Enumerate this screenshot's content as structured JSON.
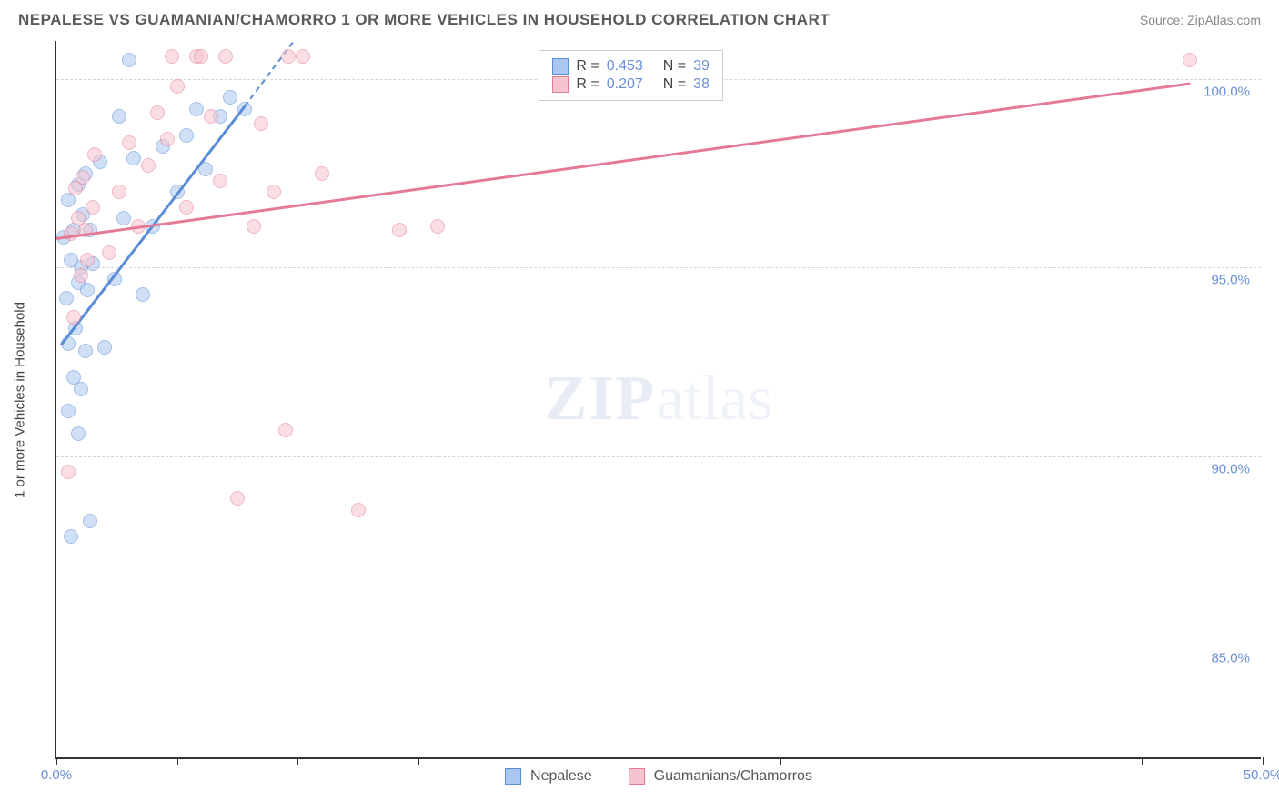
{
  "header": {
    "title": "NEPALESE VS GUAMANIAN/CHAMORRO 1 OR MORE VEHICLES IN HOUSEHOLD CORRELATION CHART",
    "source": "Source: ZipAtlas.com"
  },
  "watermark": {
    "prefix": "ZIP",
    "suffix": "atlas"
  },
  "chart": {
    "type": "scatter",
    "background_color": "#ffffff",
    "grid_color": "#d5d5d5",
    "axis_color": "#333333",
    "text_color": "#444444",
    "value_label_color": "#6a8fd6",
    "xlim": [
      0,
      50
    ],
    "ylim": [
      82,
      101
    ],
    "x_ticks": [
      0,
      5,
      10,
      15,
      20,
      25,
      30,
      35,
      40,
      45,
      50
    ],
    "x_tick_labels": {
      "0": "0.0%",
      "50": "50.0%"
    },
    "y_gridlines": [
      85,
      90,
      95,
      100
    ],
    "y_tick_labels": {
      "85": "85.0%",
      "90": "90.0%",
      "95": "95.0%",
      "100": "100.0%"
    },
    "y_axis_title": "1 or more Vehicles in Household",
    "marker_radius": 8,
    "marker_opacity": 0.55,
    "line_width": 2.5,
    "stats_box": {
      "rows": [
        {
          "swatch_fill": "#a9c7ef",
          "swatch_border": "#5a8dd6",
          "r_label": "R =",
          "r": "0.453",
          "n_label": "N =",
          "n": "39"
        },
        {
          "swatch_fill": "#f6c4cf",
          "swatch_border": "#e47a96",
          "r_label": "R =",
          "r": "0.207",
          "n_label": "N =",
          "n": "38"
        }
      ]
    },
    "legend": [
      {
        "swatch_fill": "#a9c7ef",
        "swatch_border": "#5a8dd6",
        "label": "Nepalese"
      },
      {
        "swatch_fill": "#f6c4cf",
        "swatch_border": "#e47a96",
        "label": "Guamanians/Chamorros"
      }
    ],
    "series": [
      {
        "name": "Nepalese",
        "fill": "#a9c7ef",
        "stroke": "#5a8dd6",
        "trend": {
          "solid": {
            "x1": 0.2,
            "y1": 93.0,
            "x2": 7.8,
            "y2": 99.3
          },
          "dash": {
            "x1": 7.8,
            "y1": 99.3,
            "x2": 9.8,
            "y2": 101.0
          }
        },
        "points": [
          [
            0.6,
            87.9
          ],
          [
            0.9,
            90.6
          ],
          [
            0.5,
            91.2
          ],
          [
            0.7,
            92.1
          ],
          [
            1.0,
            91.8
          ],
          [
            1.4,
            88.3
          ],
          [
            0.5,
            93.0
          ],
          [
            0.8,
            93.4
          ],
          [
            1.2,
            92.8
          ],
          [
            0.4,
            94.2
          ],
          [
            0.9,
            94.6
          ],
          [
            1.3,
            94.4
          ],
          [
            0.6,
            95.2
          ],
          [
            1.0,
            95.0
          ],
          [
            1.5,
            95.1
          ],
          [
            0.3,
            95.8
          ],
          [
            0.7,
            96.0
          ],
          [
            1.1,
            96.4
          ],
          [
            1.4,
            96.0
          ],
          [
            0.5,
            96.8
          ],
          [
            0.9,
            97.2
          ],
          [
            1.2,
            97.5
          ],
          [
            2.0,
            92.9
          ],
          [
            2.4,
            94.7
          ],
          [
            2.8,
            96.3
          ],
          [
            3.2,
            97.9
          ],
          [
            3.6,
            94.3
          ],
          [
            4.0,
            96.1
          ],
          [
            4.4,
            98.2
          ],
          [
            5.0,
            97.0
          ],
          [
            5.4,
            98.5
          ],
          [
            5.8,
            99.2
          ],
          [
            6.2,
            97.6
          ],
          [
            6.8,
            99.0
          ],
          [
            7.2,
            99.5
          ],
          [
            7.8,
            99.2
          ],
          [
            1.8,
            97.8
          ],
          [
            2.6,
            99.0
          ],
          [
            3.0,
            100.5
          ]
        ]
      },
      {
        "name": "Guamanians/Chamorros",
        "fill": "#f6c4cf",
        "stroke": "#e47a96",
        "trend": {
          "solid": {
            "x1": 0.0,
            "y1": 95.8,
            "x2": 47.0,
            "y2": 99.9
          }
        },
        "points": [
          [
            0.5,
            89.6
          ],
          [
            0.7,
            93.7
          ],
          [
            1.0,
            94.8
          ],
          [
            1.3,
            95.2
          ],
          [
            0.6,
            95.9
          ],
          [
            0.9,
            96.3
          ],
          [
            1.2,
            96.0
          ],
          [
            1.5,
            96.6
          ],
          [
            0.8,
            97.1
          ],
          [
            1.1,
            97.4
          ],
          [
            1.6,
            98.0
          ],
          [
            2.2,
            95.4
          ],
          [
            2.6,
            97.0
          ],
          [
            3.0,
            98.3
          ],
          [
            3.4,
            96.1
          ],
          [
            3.8,
            97.7
          ],
          [
            4.2,
            99.1
          ],
          [
            4.6,
            98.4
          ],
          [
            5.0,
            99.8
          ],
          [
            5.4,
            96.6
          ],
          [
            5.8,
            100.6
          ],
          [
            6.4,
            99.0
          ],
          [
            6.8,
            97.3
          ],
          [
            7.5,
            88.9
          ],
          [
            8.2,
            96.1
          ],
          [
            9.0,
            97.0
          ],
          [
            9.5,
            90.7
          ],
          [
            10.2,
            100.6
          ],
          [
            4.8,
            100.6
          ],
          [
            6.0,
            100.6
          ],
          [
            7.0,
            100.6
          ],
          [
            11.0,
            97.5
          ],
          [
            12.5,
            88.6
          ],
          [
            14.2,
            96.0
          ],
          [
            15.8,
            96.1
          ],
          [
            8.5,
            98.8
          ],
          [
            9.6,
            100.6
          ],
          [
            47.0,
            100.5
          ]
        ]
      }
    ]
  }
}
